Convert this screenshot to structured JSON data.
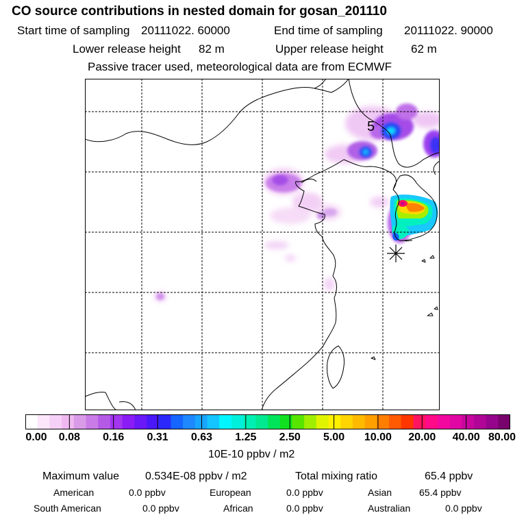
{
  "header": {
    "title": "CO  source contributions in nested domain for gosan_201110",
    "start_label": "Start time of sampling",
    "start_value": "20111022. 60000",
    "end_label": "End time of sampling",
    "end_value": "20111022. 90000",
    "lower_label": "Lower release height",
    "lower_value": "82 m",
    "upper_label": "Upper release height",
    "upper_value": "62 m",
    "note": "Passive tracer used, meteorological data are from ECMWF"
  },
  "map": {
    "contour_label": "5",
    "receptor_symbol": "*"
  },
  "colorbar": {
    "ticks": [
      "0.00",
      "0.08",
      "0.16",
      "0.31",
      "0.63",
      "1.25",
      "2.50",
      "5.00",
      "10.00",
      "20.00",
      "40.00",
      "80.00"
    ],
    "units": "10E-10 ppbv / m2",
    "colors": [
      "#ffffff",
      "#fbe6fb",
      "#f6d0f6",
      "#f0b8f0",
      "#d99be8",
      "#c97ce6",
      "#b55ae6",
      "#a334f0",
      "#8a1cf5",
      "#6a18f6",
      "#4a18f8",
      "#2a28fa",
      "#1565ff",
      "#1e88ff",
      "#18a5ff",
      "#14c4ff",
      "#00f6ff",
      "#00f0dc",
      "#00f0b4",
      "#00e890",
      "#00e45a",
      "#10e020",
      "#58e600",
      "#a0ee00",
      "#e0f400",
      "#fff000",
      "#ffd400",
      "#ffba00",
      "#ffa000",
      "#ff7e00",
      "#ff5a00",
      "#ff3600",
      "#ff1460",
      "#ff0a88",
      "#f2089e",
      "#e007a4",
      "#c8069e",
      "#b00596",
      "#96048c",
      "#78036c"
    ]
  },
  "summary": {
    "max_label": "Maximum value",
    "max_value": "0.534E-08 ppbv / m2",
    "total_label": "Total mixing ratio",
    "total_value": "65.4 ppbv",
    "regions": [
      {
        "name": "American",
        "value": "0.0 ppbv"
      },
      {
        "name": "European",
        "value": "0.0 ppbv"
      },
      {
        "name": "Asian",
        "value": "65.4 ppbv"
      },
      {
        "name": "South American",
        "value": "0.0 ppbv"
      },
      {
        "name": "African",
        "value": "0.0 ppbv"
      },
      {
        "name": "Australian",
        "value": "0.0 ppbv"
      }
    ]
  }
}
